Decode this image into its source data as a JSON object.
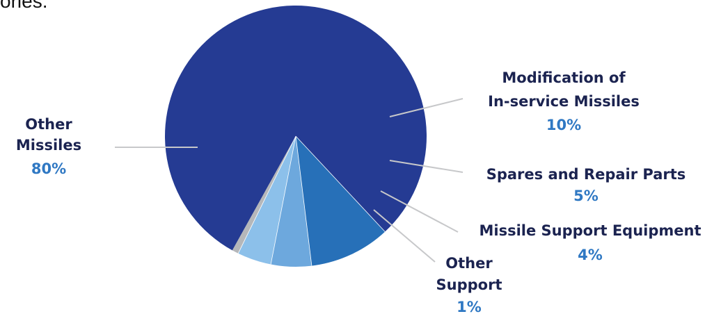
{
  "intro_fragment": "ories.",
  "chart_data": {
    "type": "pie",
    "slices": [
      {
        "label_lines": [
          "Other",
          "Missiles"
        ],
        "pct_label": "80%",
        "value": 80.0,
        "color": "#253b93"
      },
      {
        "label_lines": [
          "Modification of",
          "In-service Missiles"
        ],
        "pct_label": "10%",
        "value": 10.0,
        "color": "#2770b8"
      },
      {
        "label_lines": [
          "Spares and Repair Parts"
        ],
        "pct_label": "5%",
        "value": 5.0,
        "color": "#6da8dd"
      },
      {
        "label_lines": [
          "Missile Support Equipment"
        ],
        "pct_label": "4%",
        "value": 4.2,
        "color": "#8cc0ea"
      },
      {
        "label_lines": [
          "Other",
          "Support"
        ],
        "pct_label": "1%",
        "value": 0.8,
        "color": "#b5b7ba"
      }
    ]
  }
}
